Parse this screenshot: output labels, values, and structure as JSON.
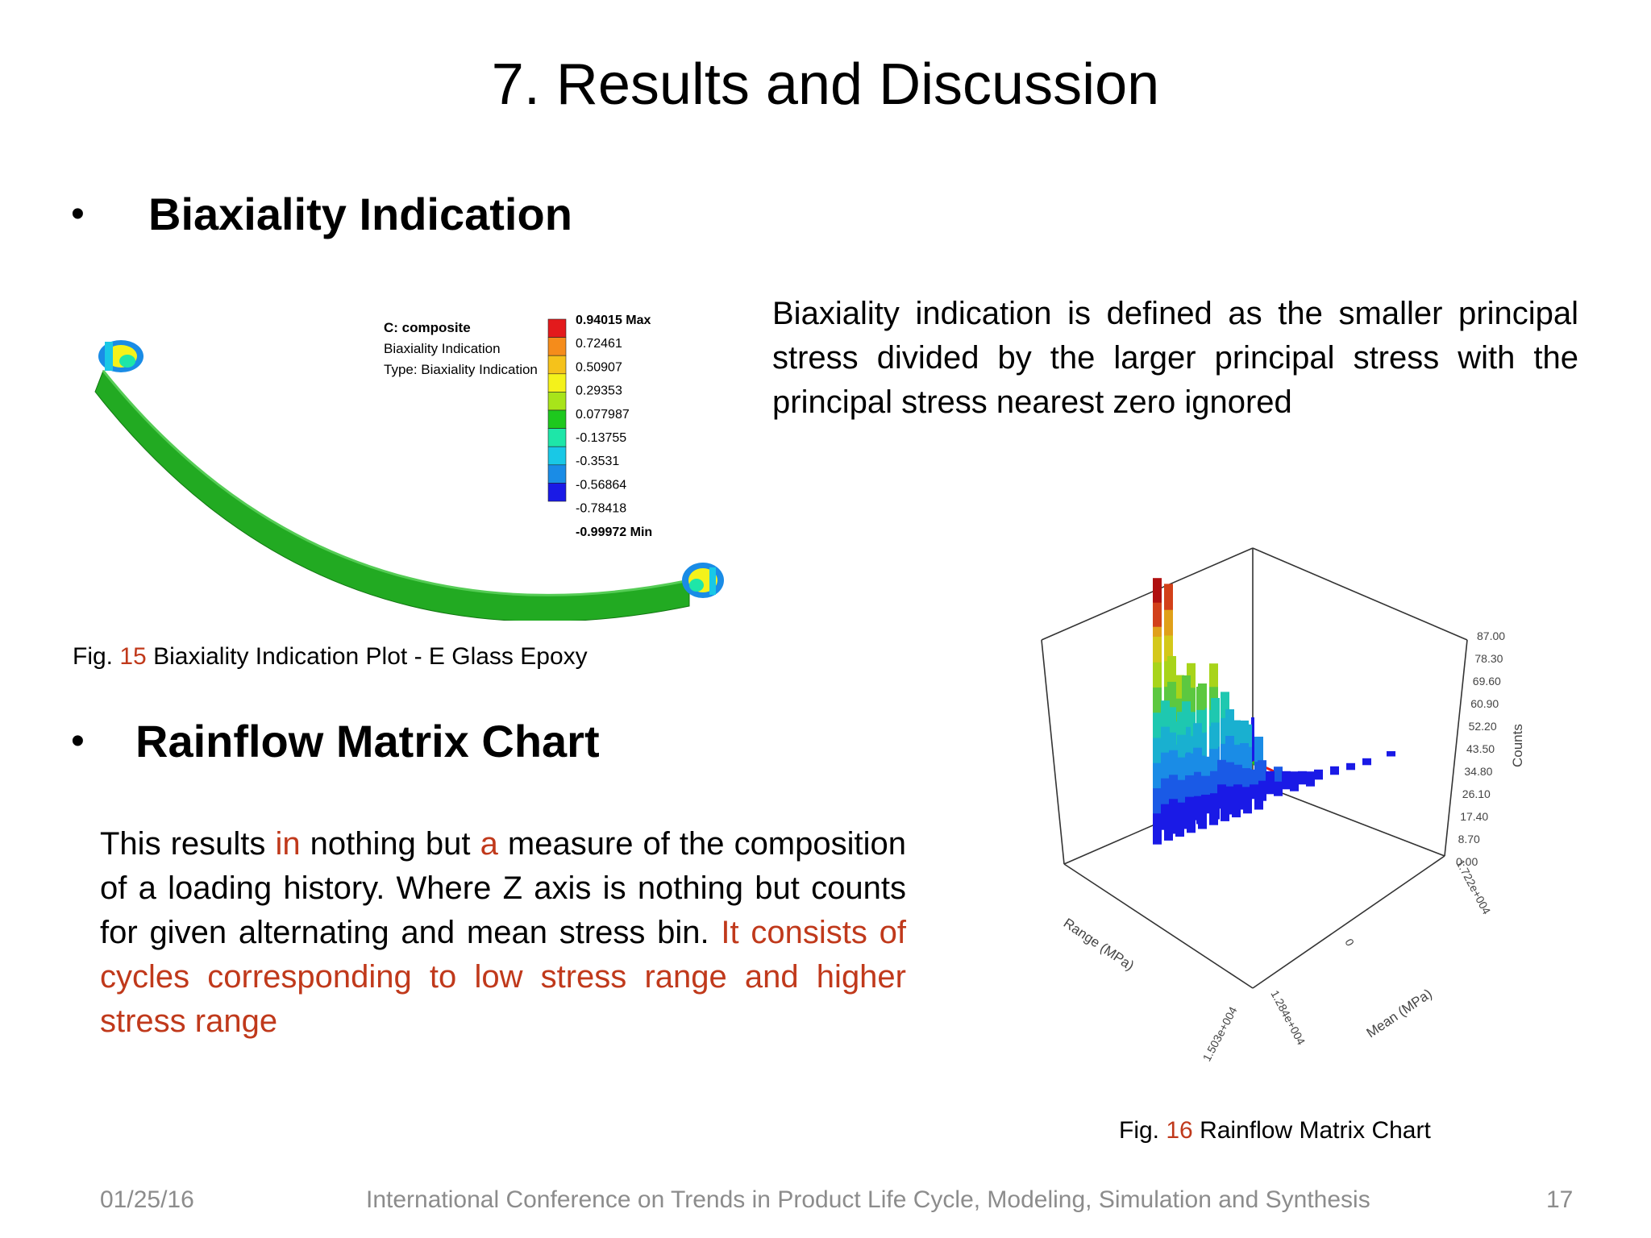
{
  "slide": {
    "title": "7. Results and Discussion",
    "bullet_glyph": "•",
    "section1": {
      "heading": "Biaxiality Indication",
      "description": "Biaxiality indication is defined as the smaller principal stress divided by the larger principal stress with the principal stress nearest zero ignored",
      "figure": {
        "legend_title": "C: composite",
        "legend_line2": "Biaxiality Indication",
        "legend_line3": "Type: Biaxiality Indication",
        "legend_values": [
          "0.94015 Max",
          "0.72461",
          "0.50907",
          "0.29353",
          "0.077987",
          "-0.13755",
          "-0.3531",
          "-0.56864",
          "-0.78418",
          "-0.99972 Min"
        ],
        "legend_colors": [
          "#e31a1c",
          "#f58c1b",
          "#f5c21b",
          "#f4f21b",
          "#a8e41a",
          "#1ec81e",
          "#1ee6a8",
          "#19c8e6",
          "#1a8ce6",
          "#1a1ae6"
        ],
        "body_color": "#22aa22",
        "caption_prefix": "Fig.",
        "caption_number": "15",
        "caption_text": "Biaxiality Indication Plot - E Glass Epoxy"
      }
    },
    "section2": {
      "heading": "Rainflow Matrix Chart",
      "para": {
        "w1": "This results",
        "w2": "in",
        "w3": "nothing but",
        "w4": "a",
        "w5": "measure of the composition of a loading history. Where Z axis is nothing but counts for given alternating and mean stress bin.",
        "w6": "It consists of cycles corresponding to low stress range and higher stress range"
      },
      "figure": {
        "z_ticks": [
          "87.00",
          "78.30",
          "69.60",
          "60.90",
          "52.20",
          "43.50",
          "34.80",
          "26.10",
          "17.40",
          "8.70",
          "0.00"
        ],
        "z_label": "Counts",
        "x_label": "Range (MPa)",
        "y_label": "Mean (MPa)",
        "tick_range": "1.503e+004",
        "tick_mean_a": "1.284e+004",
        "tick_mean_b": "1.722e+004",
        "tick_zero": "0",
        "caption_prefix": "Fig.",
        "caption_number": "16",
        "caption_text": "Rainflow Matrix Chart"
      }
    },
    "footer": {
      "date": "01/25/16",
      "conference": "International Conference on Trends  in Product Life Cycle, Modeling, Simulation and Synthesis",
      "page": "17"
    }
  }
}
